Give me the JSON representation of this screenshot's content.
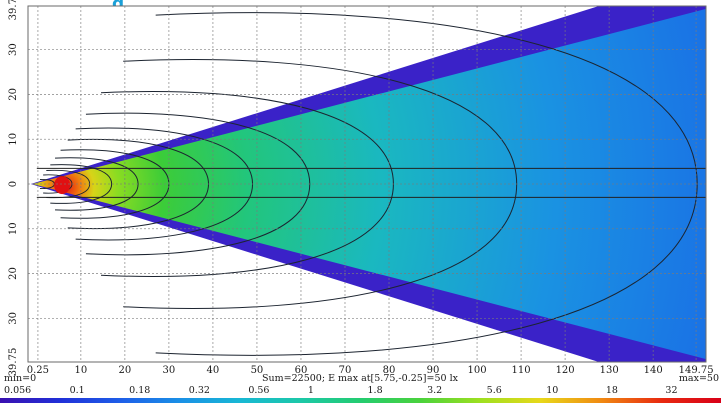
{
  "header": {
    "partial_title": "g"
  },
  "chart_data": {
    "type": "heatmap",
    "title": "",
    "xlabel": "",
    "ylabel": "",
    "xlim": [
      -2,
      152
    ],
    "ylim": [
      -39.75,
      39.75
    ],
    "grid": true,
    "x_ticks": [
      {
        "value": 0.25,
        "label": "0.25"
      },
      {
        "value": 10,
        "label": "10"
      },
      {
        "value": 20,
        "label": "20"
      },
      {
        "value": 30,
        "label": "30"
      },
      {
        "value": 40,
        "label": "40"
      },
      {
        "value": 50,
        "label": "50"
      },
      {
        "value": 60,
        "label": "60"
      },
      {
        "value": 70,
        "label": "70"
      },
      {
        "value": 80,
        "label": "80"
      },
      {
        "value": 90,
        "label": "90"
      },
      {
        "value": 100,
        "label": "100"
      },
      {
        "value": 110,
        "label": "110"
      },
      {
        "value": 120,
        "label": "120"
      },
      {
        "value": 130,
        "label": "130"
      },
      {
        "value": 140,
        "label": "140"
      },
      {
        "value": 149.75,
        "label": "149.75"
      }
    ],
    "y_ticks": [
      {
        "value": 39.75,
        "label": "39.75"
      },
      {
        "value": 30,
        "label": "30"
      },
      {
        "value": 20,
        "label": "20"
      },
      {
        "value": 10,
        "label": "10"
      },
      {
        "value": 0,
        "label": "0"
      },
      {
        "value": -10,
        "label": "10"
      },
      {
        "value": -20,
        "label": "20"
      },
      {
        "value": -30,
        "label": "30"
      },
      {
        "value": -39.75,
        "label": "39.75"
      }
    ],
    "beam": {
      "apex_x": 0,
      "apex_y": 0,
      "half_angle_deg": 15
    },
    "peak": {
      "x": 5.75,
      "y": -0.25,
      "value": 50,
      "unit": "lx"
    },
    "contour_distances": [
      4,
      8,
      12,
      17,
      23,
      30,
      39,
      49,
      62,
      81,
      109,
      150
    ],
    "center_lines_y": [
      3.5,
      -3.0
    ],
    "colorbar": {
      "min_label": "min=0",
      "max_label": "max=50",
      "summary": "Sum=22500; E max at[5.75,-0.25]=50 lx",
      "labels": [
        "0.056",
        "0.1",
        "0.18",
        "0.32",
        "0.56",
        "1",
        "1.8",
        "3.2",
        "5.6",
        "10",
        "18",
        "32"
      ],
      "colors": [
        "#3a10b0",
        "#2030d8",
        "#1e5ee8",
        "#1a90e6",
        "#18b8d4",
        "#1cc8a8",
        "#24cc70",
        "#4ad23c",
        "#9ee020",
        "#e8d81a",
        "#f08a12",
        "#e82a10",
        "#d80018"
      ]
    }
  }
}
